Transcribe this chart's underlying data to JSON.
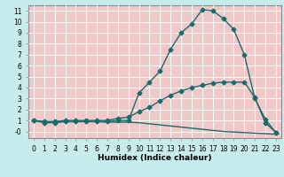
{
  "title": "",
  "xlabel": "Humidex (Indice chaleur)",
  "bg_color": "#c8ecec",
  "grid_color": "#ffffff",
  "cell_color": "#f0c8c8",
  "line_color": "#1a6b6b",
  "marker_color": "#1a6b6b",
  "xlim": [
    -0.5,
    23.5
  ],
  "ylim": [
    -0.6,
    11.5
  ],
  "xticks": [
    0,
    1,
    2,
    3,
    4,
    5,
    6,
    7,
    8,
    9,
    10,
    11,
    12,
    13,
    14,
    15,
    16,
    17,
    18,
    19,
    20,
    21,
    22,
    23
  ],
  "yticks": [
    0,
    1,
    2,
    3,
    4,
    5,
    6,
    7,
    8,
    9,
    10,
    11
  ],
  "ytick_labels": [
    "-0",
    "1",
    "2",
    "3",
    "4",
    "5",
    "6",
    "7",
    "8",
    "9",
    "10",
    "11"
  ],
  "series": [
    {
      "x": [
        0,
        1,
        2,
        3,
        4,
        5,
        6,
        7,
        8,
        9,
        10,
        11,
        12,
        13,
        14,
        15,
        16,
        17,
        18,
        19,
        20,
        21,
        22,
        23
      ],
      "y": [
        1.0,
        0.8,
        0.8,
        0.9,
        0.9,
        0.9,
        0.9,
        0.9,
        1.0,
        1.0,
        3.5,
        4.5,
        5.5,
        7.5,
        9.0,
        9.8,
        11.1,
        11.0,
        10.3,
        9.3,
        7.0,
        3.0,
        1.1,
        -0.1
      ],
      "marker": "D",
      "markersize": 2.5,
      "linewidth": 1.0
    },
    {
      "x": [
        0,
        1,
        2,
        3,
        4,
        5,
        6,
        7,
        8,
        9,
        10,
        11,
        12,
        13,
        14,
        15,
        16,
        17,
        18,
        19,
        20,
        21,
        22,
        23
      ],
      "y": [
        1.0,
        0.9,
        0.9,
        1.0,
        1.0,
        1.0,
        1.0,
        1.0,
        1.2,
        1.3,
        1.8,
        2.2,
        2.8,
        3.3,
        3.7,
        4.0,
        4.2,
        4.4,
        4.5,
        4.5,
        4.5,
        3.1,
        0.8,
        -0.1
      ],
      "marker": "D",
      "markersize": 2.5,
      "linewidth": 1.0
    },
    {
      "x": [
        0,
        1,
        2,
        3,
        4,
        5,
        6,
        7,
        8,
        9,
        10,
        11,
        12,
        13,
        14,
        15,
        16,
        17,
        18,
        19,
        20,
        21,
        22,
        23
      ],
      "y": [
        1.0,
        0.9,
        0.9,
        0.9,
        0.9,
        0.9,
        0.9,
        0.85,
        0.85,
        0.85,
        0.8,
        0.7,
        0.6,
        0.5,
        0.4,
        0.3,
        0.2,
        0.1,
        0.0,
        -0.05,
        -0.1,
        -0.15,
        -0.2,
        -0.25
      ],
      "marker": null,
      "markersize": 0,
      "linewidth": 1.0
    }
  ]
}
